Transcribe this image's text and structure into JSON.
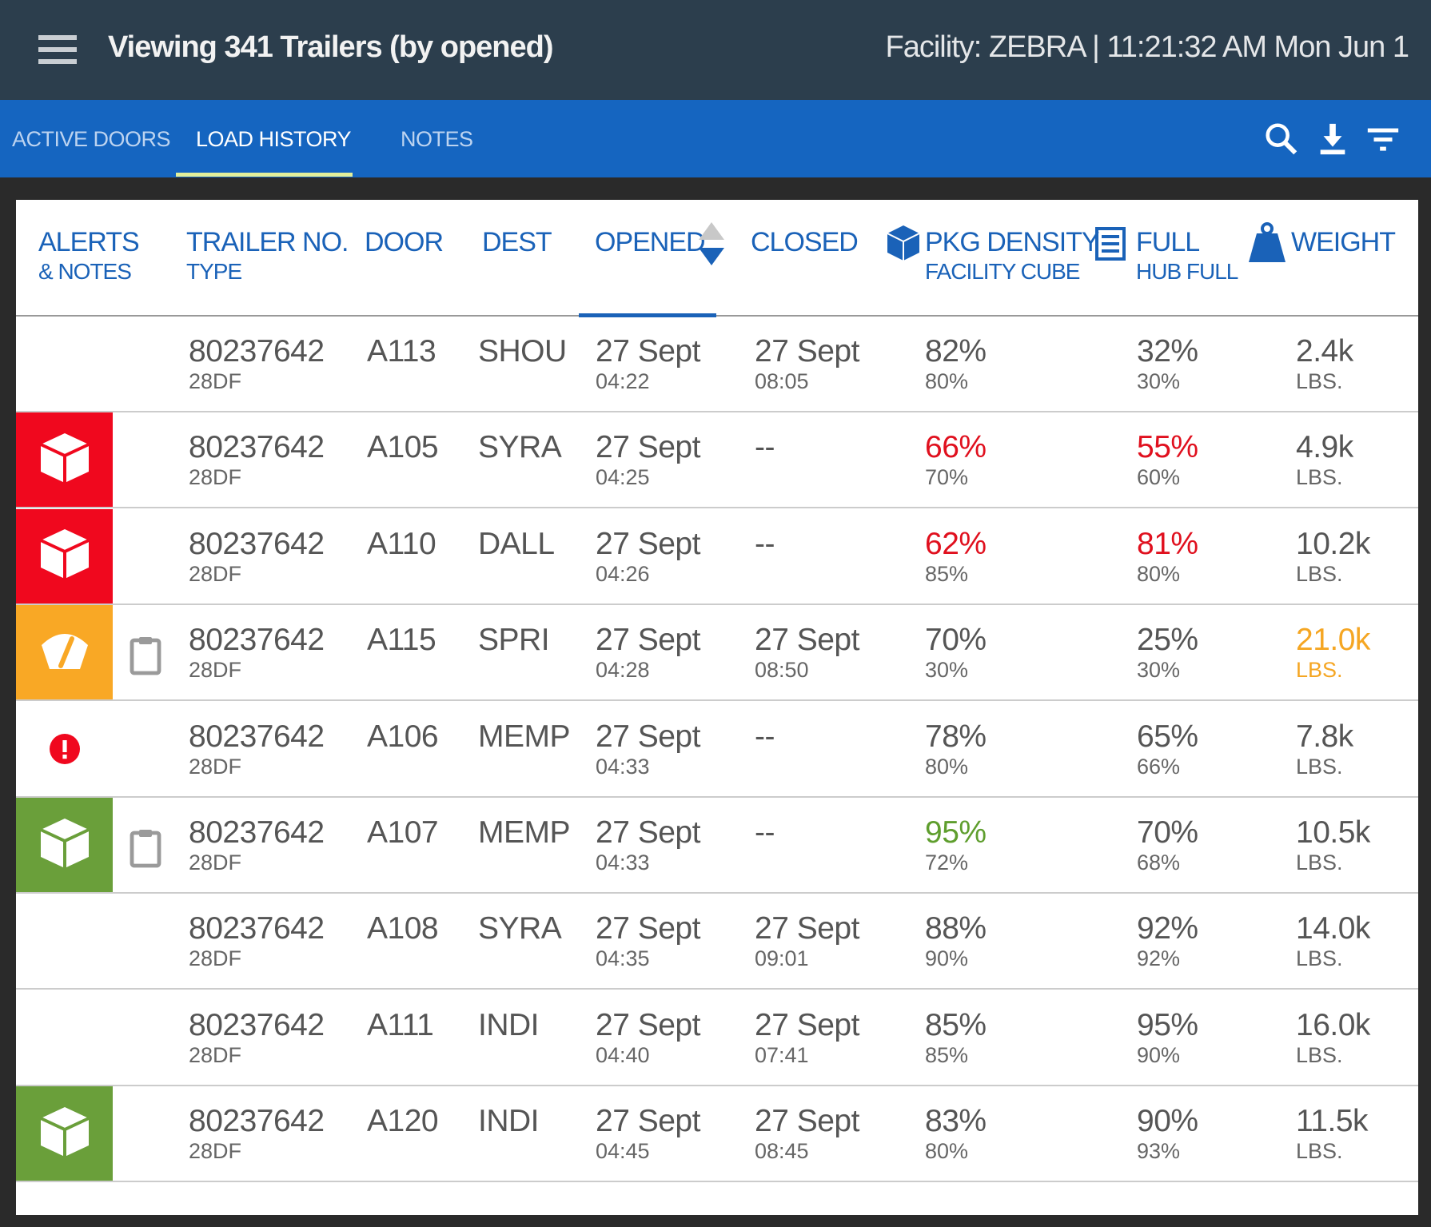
{
  "header": {
    "title": "Viewing 341 Trailers (by opened)",
    "facility": "Facility: ZEBRA | 11:21:32 AM Mon Jun 1"
  },
  "tabs": [
    {
      "label": "ACTIVE DOORS"
    },
    {
      "label": "LOAD HISTORY",
      "active": true
    },
    {
      "label": "NOTES"
    }
  ],
  "toolbar_icons": [
    "search-icon",
    "download-icon",
    "filter-icon"
  ],
  "colors": {
    "red": "#f0081e",
    "orange": "#f9a825",
    "green": "#6a9f3a",
    "blue": "#1a62b8"
  },
  "columns": {
    "alerts": "ALERTS",
    "notes": "& NOTES",
    "trailer": "TRAILER NO.",
    "type": "TYPE",
    "door": "DOOR",
    "dest": "DEST",
    "opened": "OPENED",
    "closed": "CLOSED",
    "pkg": "PKG DENSITY",
    "facility_cube": "FACILITY CUBE",
    "full": "FULL",
    "hub_full": "HUB FULL",
    "weight": "WEIGHT"
  },
  "rows": [
    {
      "alert": "none",
      "note": false,
      "trailer": "80237642",
      "type": "28DF",
      "door": "A113",
      "dest": "SHOU",
      "opened_date": "27 Sept",
      "opened_time": "04:22",
      "closed_date": "27 Sept",
      "closed_time": "08:05",
      "pkg": "82%",
      "cube": "80%",
      "full": "32%",
      "hub": "30%",
      "weight": "2.4k",
      "unit": "LBS.",
      "pkg_color": "",
      "full_color": "",
      "weight_color": ""
    },
    {
      "alert": "red-box",
      "note": false,
      "trailer": "80237642",
      "type": "28DF",
      "door": "A105",
      "dest": "SYRA",
      "opened_date": "27 Sept",
      "opened_time": "04:25",
      "closed_date": "--",
      "closed_time": "",
      "pkg": "66%",
      "cube": "70%",
      "full": "55%",
      "hub": "60%",
      "weight": "4.9k",
      "unit": "LBS.",
      "pkg_color": "#e0101e",
      "full_color": "#e0101e",
      "weight_color": ""
    },
    {
      "alert": "red-box",
      "note": false,
      "trailer": "80237642",
      "type": "28DF",
      "door": "A110",
      "dest": "DALL",
      "opened_date": "27 Sept",
      "opened_time": "04:26",
      "closed_date": "--",
      "closed_time": "",
      "pkg": "62%",
      "cube": "85%",
      "full": "81%",
      "hub": "80%",
      "weight": "10.2k",
      "unit": "LBS.",
      "pkg_color": "#e0101e",
      "full_color": "#e0101e",
      "weight_color": ""
    },
    {
      "alert": "orange-gauge",
      "note": true,
      "trailer": "80237642",
      "type": "28DF",
      "door": "A115",
      "dest": "SPRI",
      "opened_date": "27 Sept",
      "opened_time": "04:28",
      "closed_date": "27 Sept",
      "closed_time": "08:50",
      "pkg": "70%",
      "cube": "30%",
      "full": "25%",
      "hub": "30%",
      "weight": "21.0k",
      "unit": "LBS.",
      "pkg_color": "",
      "full_color": "",
      "weight_color": "#f5a623"
    },
    {
      "alert": "exclamation",
      "note": false,
      "trailer": "80237642",
      "type": "28DF",
      "door": "A106",
      "dest": "MEMP",
      "opened_date": "27 Sept",
      "opened_time": "04:33",
      "closed_date": "--",
      "closed_time": "",
      "pkg": "78%",
      "cube": "80%",
      "full": "65%",
      "hub": "66%",
      "weight": "7.8k",
      "unit": "LBS.",
      "pkg_color": "",
      "full_color": "",
      "weight_color": ""
    },
    {
      "alert": "green-box",
      "note": true,
      "trailer": "80237642",
      "type": "28DF",
      "door": "A107",
      "dest": "MEMP",
      "opened_date": "27 Sept",
      "opened_time": "04:33",
      "closed_date": "--",
      "closed_time": "",
      "pkg": "95%",
      "cube": "72%",
      "full": "70%",
      "hub": "68%",
      "weight": "10.5k",
      "unit": "LBS.",
      "pkg_color": "#5f9e2e",
      "full_color": "",
      "weight_color": ""
    },
    {
      "alert": "none",
      "note": false,
      "trailer": "80237642",
      "type": "28DF",
      "door": "A108",
      "dest": "SYRA",
      "opened_date": "27 Sept",
      "opened_time": "04:35",
      "closed_date": "27 Sept",
      "closed_time": "09:01",
      "pkg": "88%",
      "cube": "90%",
      "full": "92%",
      "hub": "92%",
      "weight": "14.0k",
      "unit": "LBS.",
      "pkg_color": "",
      "full_color": "",
      "weight_color": ""
    },
    {
      "alert": "none",
      "note": false,
      "trailer": "80237642",
      "type": "28DF",
      "door": "A111",
      "dest": "INDI",
      "opened_date": "27 Sept",
      "opened_time": "04:40",
      "closed_date": "27 Sept",
      "closed_time": "07:41",
      "pkg": "85%",
      "cube": "85%",
      "full": "95%",
      "hub": "90%",
      "weight": "16.0k",
      "unit": "LBS.",
      "pkg_color": "",
      "full_color": "",
      "weight_color": ""
    },
    {
      "alert": "green-box",
      "note": false,
      "trailer": "80237642",
      "type": "28DF",
      "door": "A120",
      "dest": "INDI",
      "opened_date": "27 Sept",
      "opened_time": "04:45",
      "closed_date": "27 Sept",
      "closed_time": "08:45",
      "pkg": "83%",
      "cube": "80%",
      "full": "90%",
      "hub": "93%",
      "weight": "11.5k",
      "unit": "LBS.",
      "pkg_color": "",
      "full_color": "",
      "weight_color": ""
    }
  ]
}
